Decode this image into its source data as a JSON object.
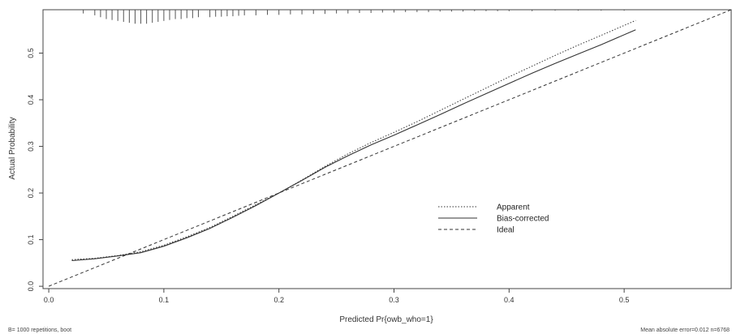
{
  "chart_data": {
    "type": "line",
    "xlabel": "Predicted Pr{owb_who=1}",
    "ylabel": "Actual Probability",
    "xlim": [
      -0.005,
      0.593
    ],
    "ylim": [
      -0.005,
      0.593
    ],
    "x_ticks": [
      "0.0",
      "0.1",
      "0.2",
      "0.3",
      "0.4",
      "0.5"
    ],
    "y_ticks": [
      "0.0",
      "0.1",
      "0.2",
      "0.3",
      "0.4",
      "0.5"
    ],
    "grid": false,
    "legend_position": "bottom-right",
    "series": [
      {
        "name": "Apparent",
        "style": "dotted",
        "x": [
          0.02,
          0.04,
          0.06,
          0.08,
          0.1,
          0.12,
          0.14,
          0.16,
          0.18,
          0.2,
          0.22,
          0.24,
          0.26,
          0.28,
          0.3,
          0.32,
          0.34,
          0.36,
          0.38,
          0.4,
          0.42,
          0.44,
          0.46,
          0.48,
          0.51
        ],
        "values": [
          0.057,
          0.06,
          0.066,
          0.074,
          0.088,
          0.106,
          0.126,
          0.15,
          0.175,
          0.2,
          0.228,
          0.257,
          0.284,
          0.308,
          0.33,
          0.353,
          0.377,
          0.401,
          0.425,
          0.449,
          0.472,
          0.495,
          0.517,
          0.538,
          0.57
        ]
      },
      {
        "name": "Bias-corrected",
        "style": "solid",
        "x": [
          0.02,
          0.04,
          0.06,
          0.08,
          0.1,
          0.12,
          0.14,
          0.16,
          0.18,
          0.2,
          0.22,
          0.24,
          0.26,
          0.28,
          0.3,
          0.32,
          0.34,
          0.36,
          0.38,
          0.4,
          0.42,
          0.44,
          0.46,
          0.48,
          0.51
        ],
        "values": [
          0.055,
          0.059,
          0.065,
          0.072,
          0.086,
          0.104,
          0.124,
          0.148,
          0.173,
          0.2,
          0.227,
          0.255,
          0.28,
          0.303,
          0.324,
          0.346,
          0.368,
          0.391,
          0.413,
          0.435,
          0.457,
          0.478,
          0.498,
          0.518,
          0.55
        ]
      },
      {
        "name": "Ideal",
        "style": "dashed",
        "x": [
          0.0,
          0.593
        ],
        "values": [
          0.0,
          0.593
        ]
      }
    ],
    "rug_ticks": [
      0.03,
      0.04,
      0.045,
      0.05,
      0.055,
      0.06,
      0.065,
      0.07,
      0.075,
      0.08,
      0.085,
      0.09,
      0.095,
      0.1,
      0.105,
      0.11,
      0.115,
      0.12,
      0.125,
      0.13,
      0.14,
      0.145,
      0.15,
      0.155,
      0.16,
      0.165,
      0.17,
      0.18,
      0.19,
      0.2,
      0.21,
      0.22,
      0.23,
      0.24,
      0.25,
      0.26,
      0.27,
      0.28,
      0.29,
      0.3,
      0.31,
      0.32,
      0.33,
      0.34,
      0.35,
      0.36,
      0.37,
      0.38,
      0.39,
      0.4,
      0.42,
      0.44,
      0.46,
      0.48,
      0.5
    ],
    "rug_heights": [
      0.008,
      0.012,
      0.016,
      0.02,
      0.022,
      0.024,
      0.026,
      0.028,
      0.03,
      0.03,
      0.03,
      0.028,
      0.026,
      0.024,
      0.022,
      0.02,
      0.02,
      0.018,
      0.018,
      0.016,
      0.016,
      0.015,
      0.015,
      0.014,
      0.014,
      0.013,
      0.012,
      0.012,
      0.011,
      0.011,
      0.01,
      0.01,
      0.009,
      0.009,
      0.008,
      0.008,
      0.007,
      0.007,
      0.006,
      0.006,
      0.005,
      0.005,
      0.005,
      0.004,
      0.004,
      0.004,
      0.003,
      0.003,
      0.003,
      0.003,
      0.003,
      0.002,
      0.002,
      0.002,
      0.002
    ],
    "footnote_left": "B= 1000 repetitions, boot",
    "footnote_right": "Mean absolute error=0.012 n=6768"
  }
}
